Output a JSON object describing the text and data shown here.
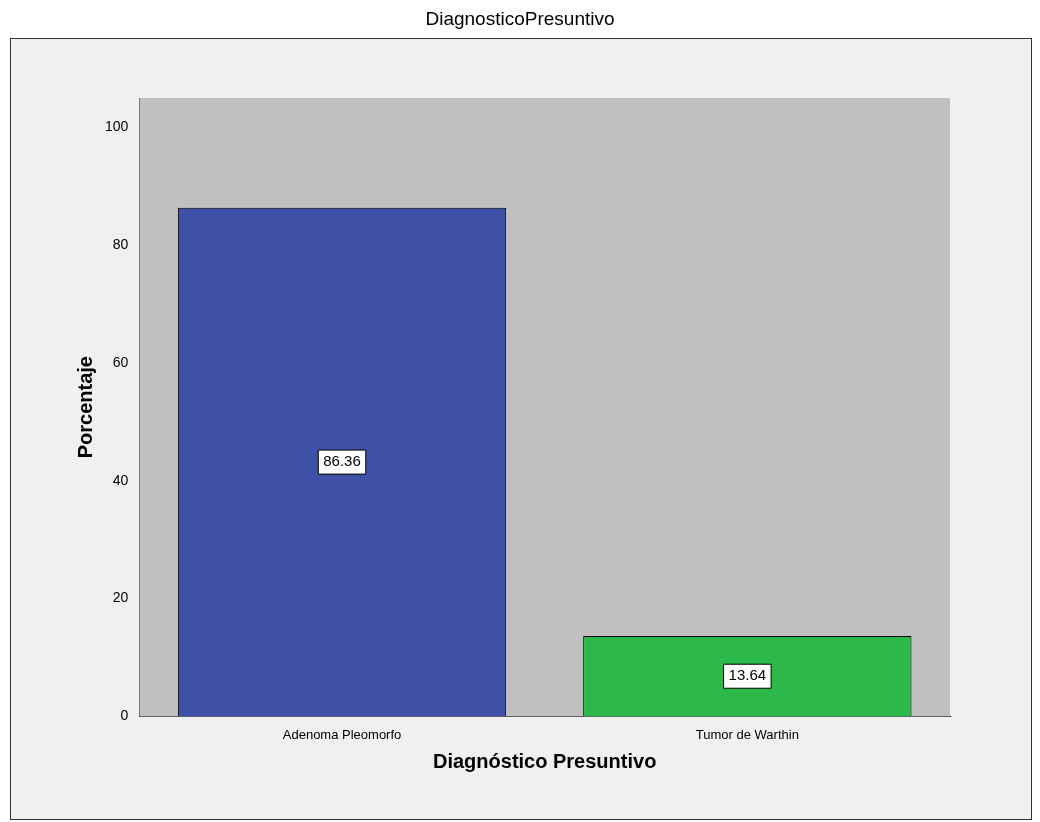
{
  "chart_data": {
    "type": "bar",
    "title": "DiagnosticoPresuntivo",
    "xlabel": "Diagnóstico Presuntivo",
    "ylabel": "Porcentaje",
    "categories": [
      "Adenoma Pleomorfo",
      "Tumor de Warthin"
    ],
    "values": [
      86.36,
      13.64
    ],
    "colors": [
      "#3f51a6",
      "#2db84a"
    ],
    "ylim": [
      0,
      105
    ],
    "yticks": [
      0,
      20,
      40,
      60,
      80,
      100
    ],
    "grid": false,
    "legend": false,
    "data_labels": true
  }
}
